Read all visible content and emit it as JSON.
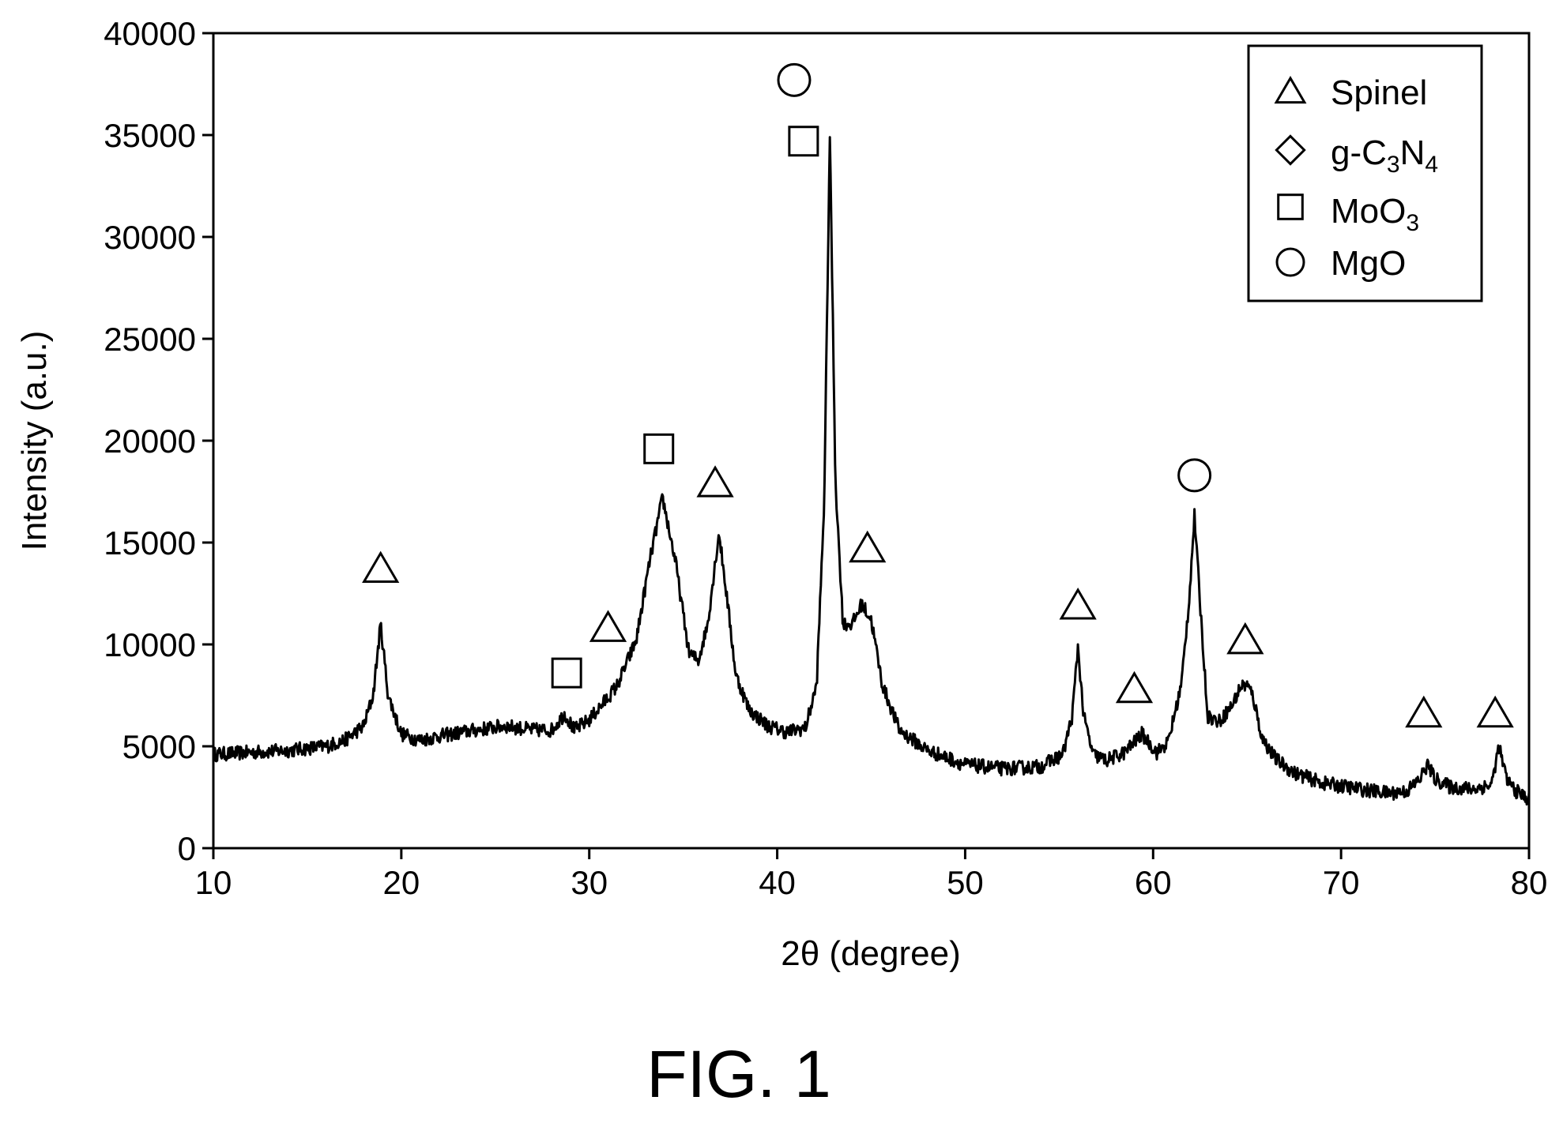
{
  "figure_label": "FIG. 1",
  "chart_data": {
    "type": "line",
    "xlabel": "2θ (degree)",
    "ylabel": "Intensity (a.u.)",
    "xlim": [
      10,
      80
    ],
    "ylim": [
      0,
      40000
    ],
    "xticks": [
      10,
      20,
      30,
      40,
      50,
      60,
      70,
      80
    ],
    "yticks": [
      0,
      5000,
      10000,
      15000,
      20000,
      25000,
      30000,
      35000,
      40000
    ],
    "grid": false,
    "legend_position": "top-right",
    "legend": [
      {
        "marker": "triangle",
        "label": "Spinel",
        "base": "Spinel",
        "sub": []
      },
      {
        "marker": "diamond",
        "label": "g-C3N4",
        "base": "g-C",
        "sub": [
          "3",
          "N",
          "4"
        ]
      },
      {
        "marker": "square",
        "label": "MoO3",
        "base": "MoO",
        "sub": [
          "3"
        ]
      },
      {
        "marker": "circle",
        "label": "MgO",
        "base": "MgO",
        "sub": []
      }
    ],
    "series": [
      {
        "x": [
          10,
          12,
          14,
          16,
          17,
          18,
          18.5,
          18.9,
          19.3,
          20,
          21,
          22,
          24,
          25.5,
          27,
          28,
          28.7,
          29.2,
          30,
          31,
          31.5,
          32.5,
          33.2,
          33.9,
          34.6,
          35.3,
          35.8,
          36.3,
          36.9,
          37.3,
          37.8,
          38.5,
          39.5,
          40.5,
          41.5,
          42.1,
          42.5,
          42.8,
          43.1,
          43.5,
          44.0,
          44.5,
          45.0,
          45.6,
          46.5,
          48,
          50,
          52,
          54,
          55.2,
          55.7,
          56.0,
          56.3,
          56.8,
          57.5,
          58.5,
          59.4,
          60.2,
          60.8,
          61.5,
          61.9,
          62.2,
          62.5,
          62.9,
          63.5,
          64.2,
          64.7,
          65.0,
          65.3,
          65.8,
          66.5,
          67.5,
          69,
          71,
          72.5,
          73.5,
          74.2,
          74.6,
          75.0,
          75.8,
          77,
          78,
          78.4,
          78.8,
          79.3,
          80
        ],
        "y": [
          4600,
          4700,
          4800,
          5000,
          5300,
          6000,
          7500,
          11000,
          7500,
          5600,
          5300,
          5500,
          5800,
          6000,
          5800,
          5800,
          6600,
          5800,
          6300,
          7400,
          8000,
          10200,
          14000,
          17200,
          14000,
          9600,
          9200,
          11000,
          15500,
          12500,
          8500,
          6800,
          6000,
          5700,
          5900,
          8000,
          17000,
          35000,
          18000,
          11000,
          11000,
          12000,
          11200,
          8000,
          5800,
          4800,
          4100,
          3900,
          4000,
          4600,
          6500,
          9900,
          6500,
          4600,
          4300,
          4700,
          5600,
          4700,
          5200,
          8000,
          12000,
          16300,
          12000,
          6500,
          6200,
          7000,
          8000,
          8000,
          7500,
          5400,
          4400,
          3700,
          3200,
          2900,
          2700,
          2800,
          3400,
          4100,
          3400,
          3000,
          2900,
          3100,
          5000,
          3400,
          2800,
          2400
        ]
      }
    ],
    "annotations": [
      {
        "marker": "triangle",
        "x": 18.9,
        "y": 13700
      },
      {
        "marker": "square",
        "x": 28.8,
        "y": 8600
      },
      {
        "marker": "triangle",
        "x": 31.0,
        "y": 10800
      },
      {
        "marker": "square",
        "x": 33.7,
        "y": 19600
      },
      {
        "marker": "triangle",
        "x": 36.7,
        "y": 17900
      },
      {
        "marker": "circle",
        "x": 40.9,
        "y": 37700
      },
      {
        "marker": "square",
        "x": 41.4,
        "y": 34700
      },
      {
        "marker": "triangle",
        "x": 44.8,
        "y": 14700
      },
      {
        "marker": "triangle",
        "x": 56.0,
        "y": 11900
      },
      {
        "marker": "triangle",
        "x": 59.0,
        "y": 7800
      },
      {
        "marker": "circle",
        "x": 62.2,
        "y": 18300
      },
      {
        "marker": "triangle",
        "x": 64.9,
        "y": 10200
      },
      {
        "marker": "triangle",
        "x": 74.4,
        "y": 6600
      },
      {
        "marker": "triangle",
        "x": 78.2,
        "y": 6600
      }
    ]
  }
}
